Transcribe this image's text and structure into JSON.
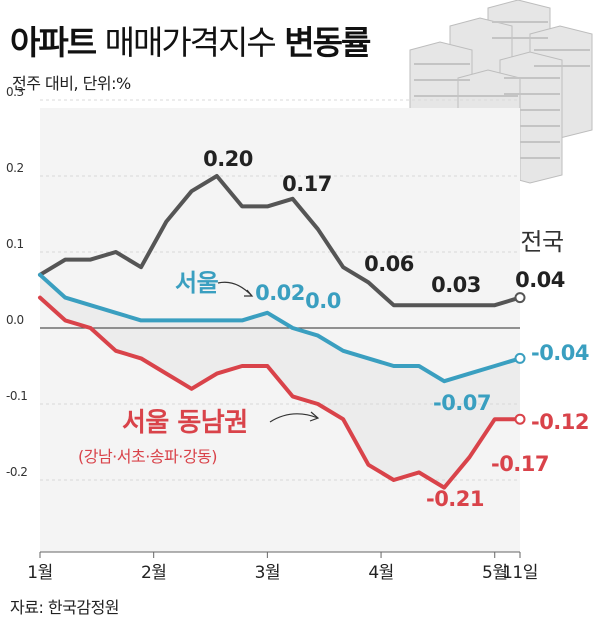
{
  "header": {
    "title_bold": "아파트",
    "title_light": "매매가격지수",
    "title_bold2": "변동률",
    "subtitle": "전주 대비, 단위:%"
  },
  "footer": {
    "source": "자료: 한국감정원"
  },
  "chart_data": {
    "type": "line",
    "title": "아파트 매매가격지수 변동률",
    "subtitle": "전주 대비, 단위:%",
    "x_labels": [
      "1월",
      "2월",
      "3월",
      "4월",
      "5월",
      "11일"
    ],
    "ylim": [
      -0.2,
      0.3
    ],
    "y_ticks": [
      "0.3",
      "0.2",
      "0.1",
      "0.0",
      "-0.1",
      "-0.2"
    ],
    "grid": true,
    "colors": {
      "nation": "#555555",
      "seoul": "#3a9fc0",
      "gangnam": "#d9434a",
      "gangnam_fill": "#ececec"
    },
    "series": [
      {
        "name": "전국",
        "key": "nation",
        "values": [
          0.07,
          0.09,
          0.09,
          0.1,
          0.08,
          0.14,
          0.18,
          0.2,
          0.16,
          0.16,
          0.17,
          0.13,
          0.08,
          0.06,
          0.03,
          0.03,
          0.03,
          0.03,
          0.03,
          0.04
        ]
      },
      {
        "name": "서울",
        "key": "seoul",
        "values": [
          0.07,
          0.04,
          0.03,
          0.02,
          0.01,
          0.01,
          0.01,
          0.01,
          0.01,
          0.02,
          0.0,
          -0.01,
          -0.03,
          -0.04,
          -0.05,
          -0.05,
          -0.07,
          -0.06,
          -0.05,
          -0.04
        ]
      },
      {
        "name": "서울 동남권",
        "sublabel": "(강남·서초·송파·강동)",
        "key": "gangnam",
        "values": [
          0.04,
          0.01,
          0.0,
          -0.03,
          -0.04,
          -0.06,
          -0.08,
          -0.06,
          -0.05,
          -0.05,
          -0.09,
          -0.1,
          -0.12,
          -0.18,
          -0.2,
          -0.19,
          -0.21,
          -0.17,
          -0.12,
          -0.12
        ]
      }
    ],
    "data_labels": {
      "nation": [
        "0.20",
        "0.17",
        "0.06",
        "0.03",
        "0.04"
      ],
      "seoul": [
        "0.02",
        "0.0",
        "-0.07",
        "-0.04"
      ],
      "gangnam": [
        "-0.21",
        "-0.17",
        "-0.12"
      ]
    }
  }
}
